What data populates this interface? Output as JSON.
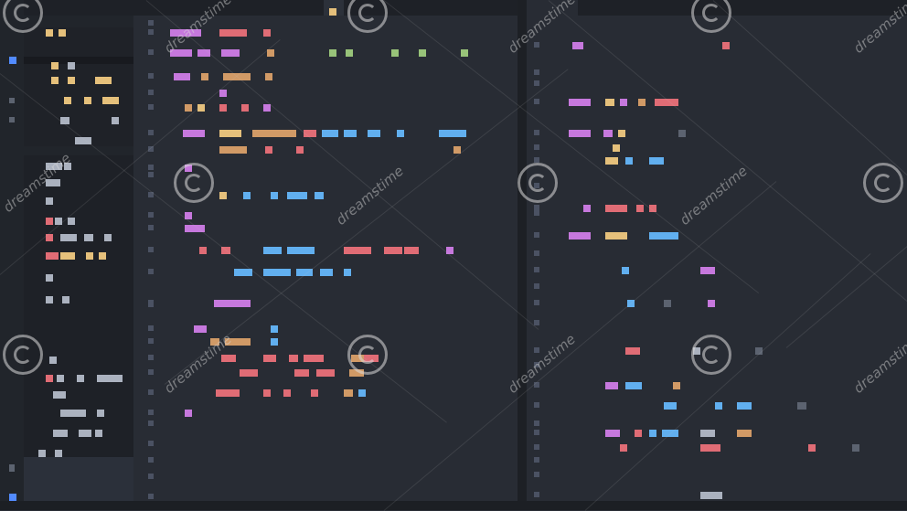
{
  "theme": {
    "background": "#282c34",
    "sidebar": "#21252b",
    "accent": "#528bff",
    "token_colors": {
      "keyword": "#c678dd",
      "string": "#98c379",
      "variable": "#e06c75",
      "function": "#61afef",
      "number": "#d19a66",
      "class": "#e5c07b",
      "plain": "#abb2bf",
      "comment": "#5c6370"
    }
  },
  "icons": {
    "explorer": "files-icon",
    "active_marker": "active-indicator-icon",
    "watermark": "spiral-logo-icon"
  },
  "watermark": {
    "text": "dreamstime"
  }
}
